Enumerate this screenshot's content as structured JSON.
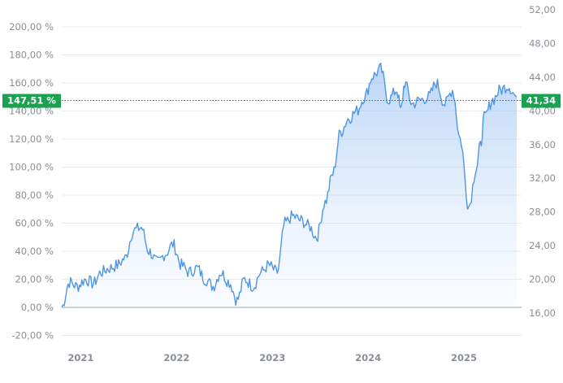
{
  "chart_data": {
    "type": "area",
    "title": "",
    "xlabel": "",
    "ylabel": "",
    "x_ticks": [
      "2021",
      "2022",
      "2023",
      "2024",
      "2025"
    ],
    "y_left": {
      "ticks": [
        "-20,00 %",
        "0,00 %",
        "20,00 %",
        "40,00 %",
        "60,00 %",
        "80,00 %",
        "100,00 %",
        "120,00 %",
        "140,00 %",
        "160,00 %",
        "180,00 %",
        "200,00 %"
      ],
      "tick_values": [
        -20,
        0,
        20,
        40,
        60,
        80,
        100,
        120,
        140,
        160,
        180,
        200
      ],
      "range": [
        -20,
        200
      ],
      "unit": "%"
    },
    "y_right": {
      "ticks": [
        "16,00",
        "20,00",
        "24,00",
        "28,00",
        "32,00",
        "36,00",
        "40,00",
        "44,00",
        "48,00",
        "52,00"
      ],
      "tick_values": [
        16,
        20,
        24,
        28,
        32,
        36,
        40,
        44,
        48,
        52
      ],
      "range": [
        16,
        52
      ]
    },
    "current": {
      "percent_label": "147,51 %",
      "price_label": "41,34",
      "percent": 147.51,
      "price": 41.34
    },
    "series": [
      {
        "x": [
          2020.92,
          2021.0,
          2021.08,
          2021.17,
          2021.25,
          2021.33,
          2021.42,
          2021.5,
          2021.58,
          2021.67,
          2021.75,
          2021.83,
          2021.92,
          2022.0,
          2022.08,
          2022.17,
          2022.25,
          2022.33,
          2022.42,
          2022.5,
          2022.58,
          2022.67,
          2022.75,
          2022.83,
          2022.92,
          2023.0,
          2023.08,
          2023.17,
          2023.25,
          2023.33,
          2023.42,
          2023.5,
          2023.58,
          2023.67,
          2023.75,
          2023.83,
          2023.92,
          2024.0,
          2024.08,
          2024.17,
          2024.25,
          2024.33,
          2024.42,
          2024.46,
          2024.5,
          2024.58,
          2024.67,
          2024.75,
          2024.83,
          2024.92,
          2025.0,
          2025.08,
          2025.17,
          2025.25,
          2025.29,
          2025.33,
          2025.42,
          2025.5,
          2025.58,
          2025.67
        ],
        "values": [
          0,
          18,
          15,
          20,
          17,
          25,
          28,
          30,
          35,
          55,
          57,
          40,
          32,
          38,
          45,
          30,
          25,
          28,
          20,
          15,
          25,
          18,
          5,
          20,
          15,
          25,
          30,
          25,
          60,
          65,
          62,
          58,
          50,
          75,
          95,
          125,
          135,
          140,
          150,
          165,
          170,
          148,
          155,
          140,
          160,
          145,
          148,
          150,
          160,
          145,
          155,
          120,
          72,
          100,
          115,
          135,
          148,
          155,
          158,
          150
        ]
      }
    ]
  }
}
